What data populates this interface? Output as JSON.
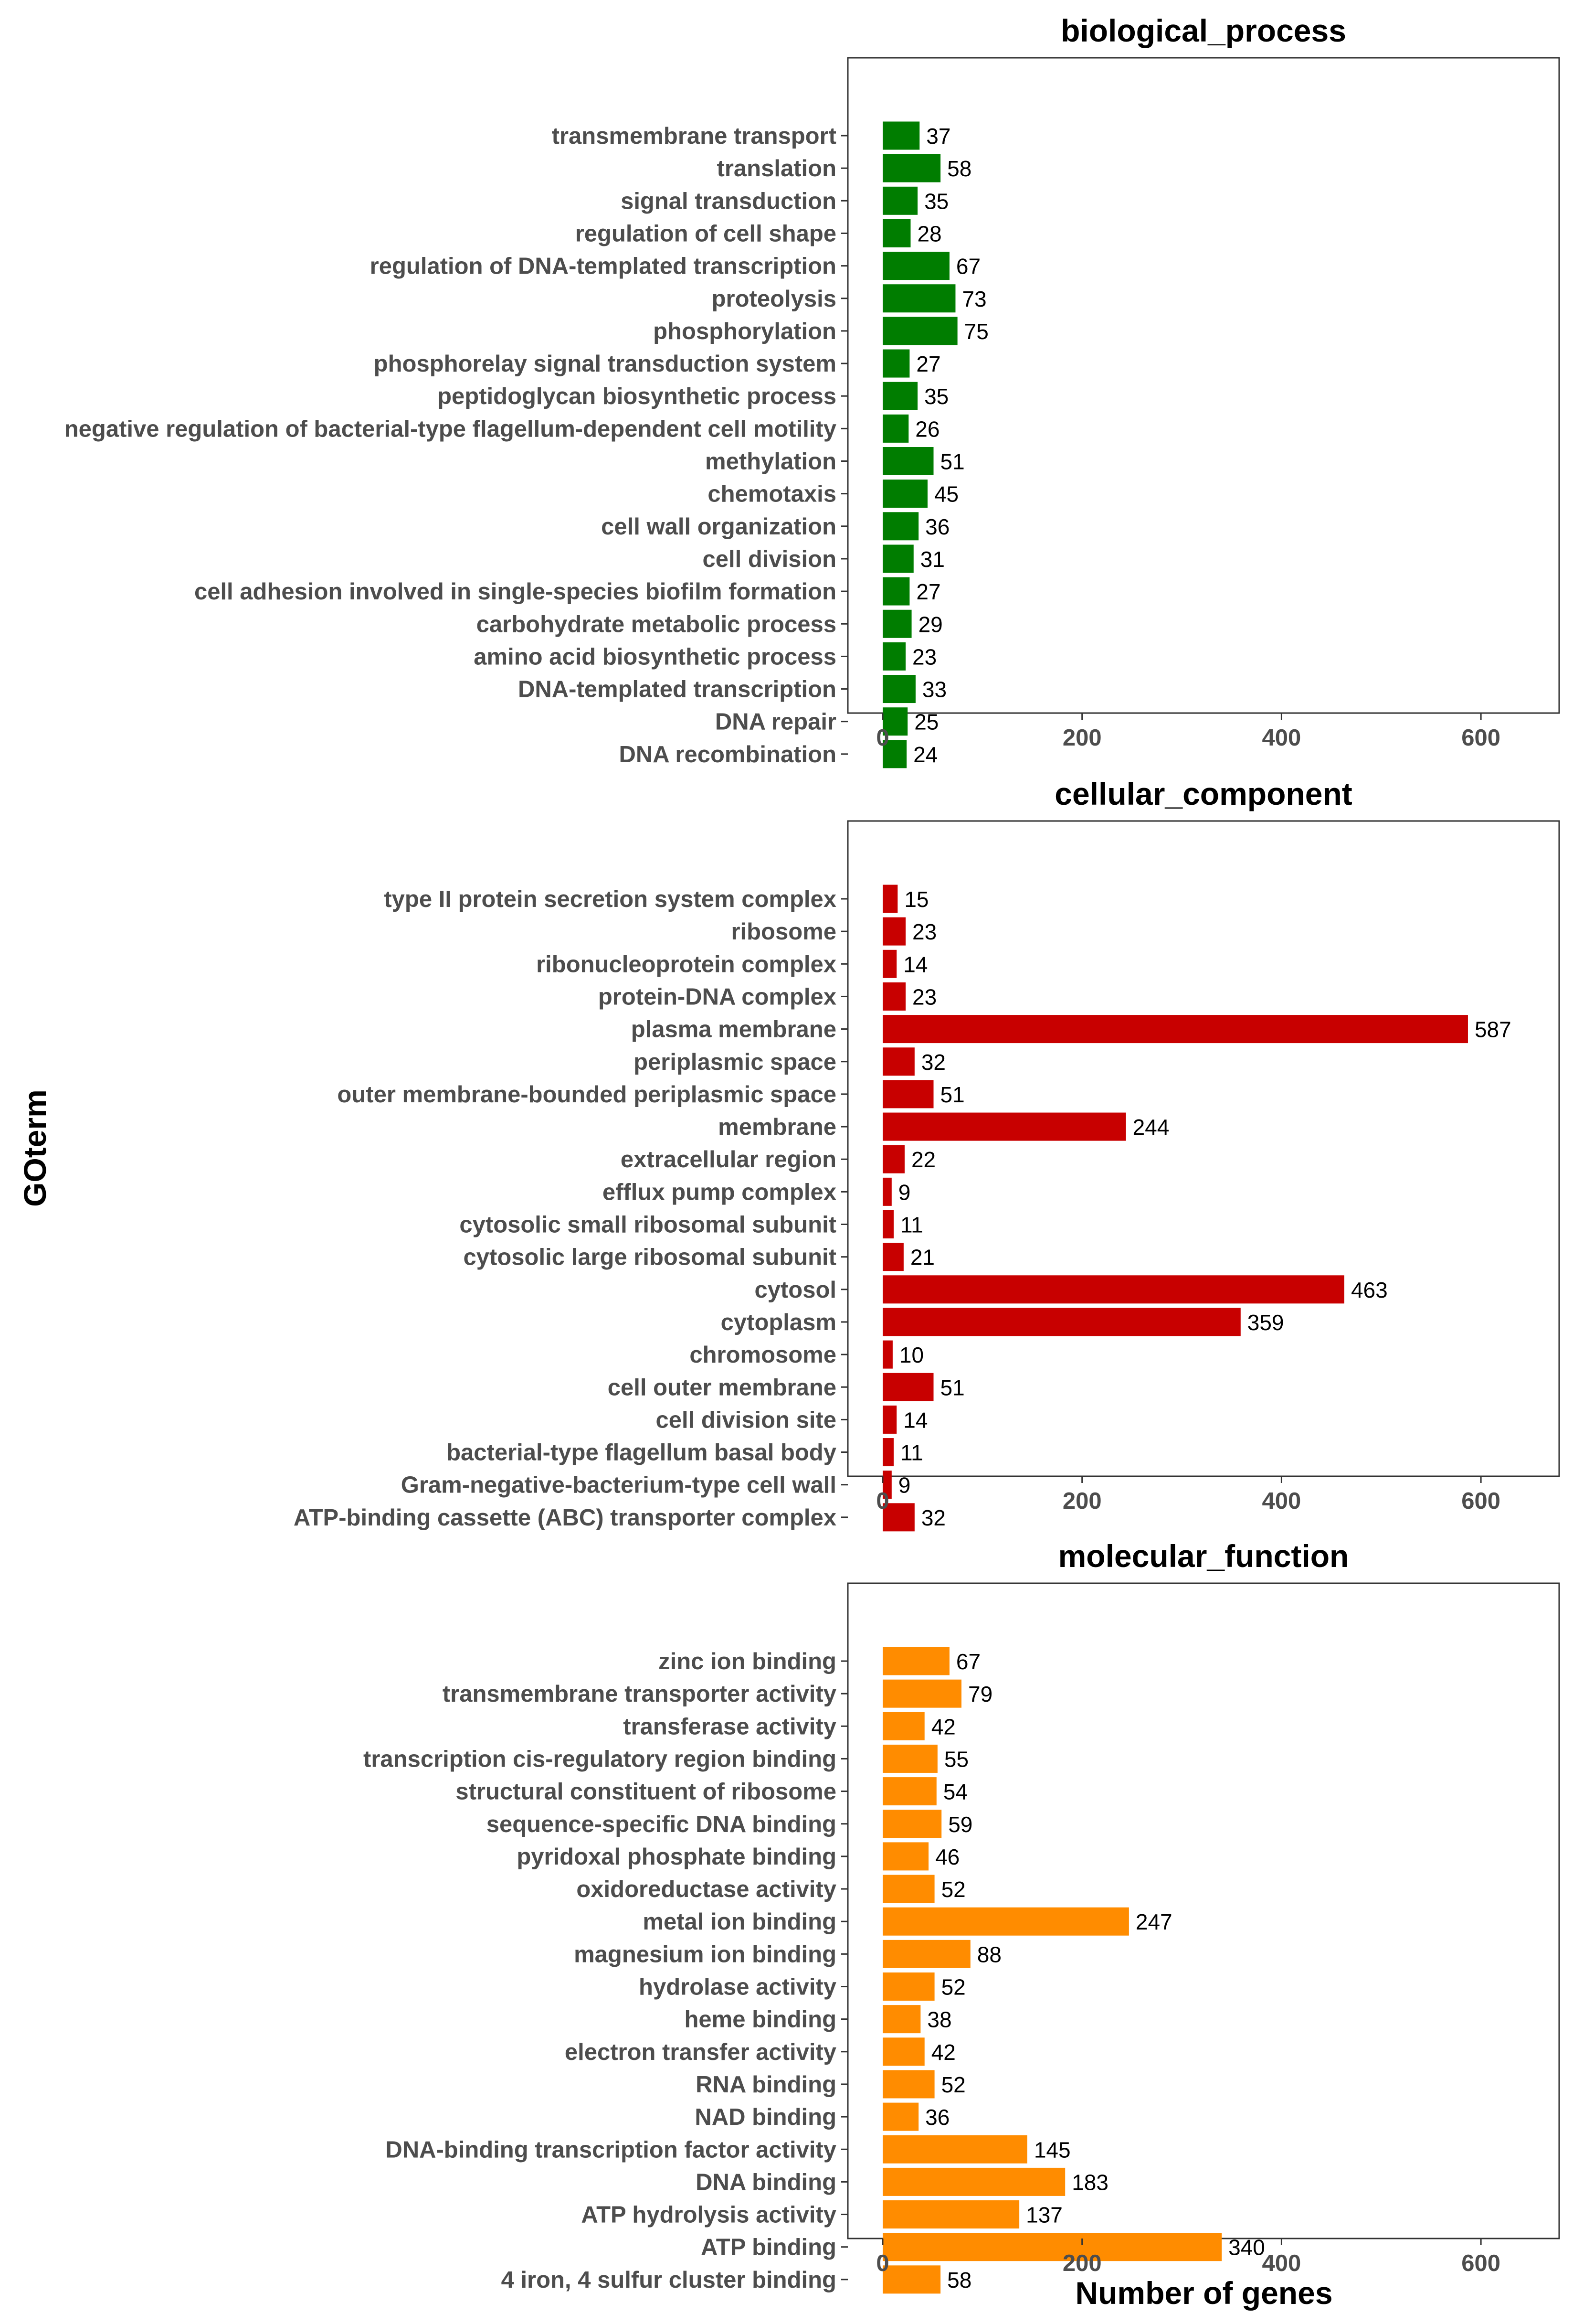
{
  "chart_data": {
    "type": "bar",
    "orientation": "horizontal",
    "ylabel": "GOterm",
    "xlabel": "Number of genes",
    "xlim": [
      0,
      620
    ],
    "xticks": [
      0,
      200,
      400,
      600
    ],
    "grid": false,
    "panels": [
      {
        "title": "biological_process",
        "color": "#007d00",
        "categories": [
          "transmembrane transport",
          "translation",
          "signal transduction",
          "regulation of cell shape",
          "regulation of DNA-templated transcription",
          "proteolysis",
          "phosphorylation",
          "phosphorelay signal transduction system",
          "peptidoglycan biosynthetic process",
          "negative regulation of bacterial-type flagellum-dependent cell motility",
          "methylation",
          "chemotaxis",
          "cell wall organization",
          "cell division",
          "cell adhesion involved in single-species biofilm formation",
          "carbohydrate metabolic process",
          "amino acid biosynthetic process",
          "DNA-templated transcription",
          "DNA repair",
          "DNA recombination"
        ],
        "values": [
          37,
          58,
          35,
          28,
          67,
          73,
          75,
          27,
          35,
          26,
          51,
          45,
          36,
          31,
          27,
          29,
          23,
          33,
          25,
          24
        ]
      },
      {
        "title": "cellular_component",
        "color": "#c80000",
        "categories": [
          "type II protein secretion system complex",
          "ribosome",
          "ribonucleoprotein complex",
          "protein-DNA complex",
          "plasma membrane",
          "periplasmic space",
          "outer membrane-bounded periplasmic space",
          "membrane",
          "extracellular region",
          "efflux pump complex",
          "cytosolic small ribosomal subunit",
          "cytosolic large ribosomal subunit",
          "cytosol",
          "cytoplasm",
          "chromosome",
          "cell outer membrane",
          "cell division site",
          "bacterial-type flagellum basal body",
          "Gram-negative-bacterium-type cell wall",
          "ATP-binding cassette (ABC) transporter complex"
        ],
        "values": [
          15,
          23,
          14,
          23,
          587,
          32,
          51,
          244,
          22,
          9,
          11,
          21,
          463,
          359,
          10,
          51,
          14,
          11,
          9,
          32
        ]
      },
      {
        "title": "molecular_function",
        "color": "#ff8c00",
        "categories": [
          "zinc ion binding",
          "transmembrane transporter activity",
          "transferase activity",
          "transcription cis-regulatory region binding",
          "structural constituent of ribosome",
          "sequence-specific DNA binding",
          "pyridoxal phosphate binding",
          "oxidoreductase activity",
          "metal ion binding",
          "magnesium ion binding",
          "hydrolase activity",
          "heme binding",
          "electron transfer activity",
          "RNA binding",
          "NAD binding",
          "DNA-binding transcription factor activity",
          "DNA binding",
          "ATP hydrolysis activity",
          "ATP binding",
          "4 iron, 4 sulfur cluster binding"
        ],
        "values": [
          67,
          79,
          42,
          55,
          54,
          59,
          46,
          52,
          247,
          88,
          52,
          38,
          42,
          52,
          36,
          145,
          183,
          137,
          340,
          58
        ]
      }
    ]
  }
}
